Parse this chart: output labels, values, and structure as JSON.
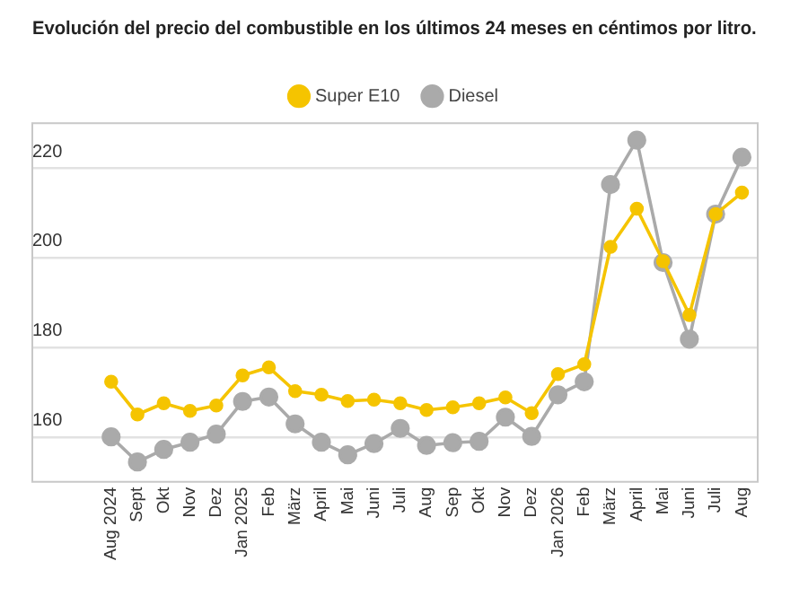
{
  "chart_data": {
    "type": "line",
    "title": "Evolución del precio del combustible en los últimos 24 meses en céntimos por litro.",
    "categories": [
      "Aug 2024",
      "Sept",
      "Okt",
      "Nov",
      "Dez",
      "Jan 2025",
      "Feb",
      "März",
      "April",
      "Mai",
      "Juni",
      "Juli",
      "Aug",
      "Sep",
      "Okt",
      "Nov",
      "Dez",
      "Jan 2026",
      "Feb",
      "März",
      "April",
      "Mai",
      "Juni",
      "Juli",
      "Aug"
    ],
    "series": [
      {
        "name": "Super E10",
        "color": "#f5c400",
        "values": [
          172.3,
          165,
          167.5,
          165.8,
          167,
          173.7,
          175.5,
          170.2,
          169.4,
          168,
          168.3,
          167.5,
          166,
          166.6,
          167.5,
          168.8,
          165.3,
          174,
          176.2,
          202.4,
          210.9,
          199.2,
          187.2,
          209.7,
          214.5
        ]
      },
      {
        "name": "Diesel",
        "color": "#aaaaaa",
        "values": [
          160,
          154.4,
          157.2,
          158.8,
          160.6,
          167.9,
          168.9,
          162.9,
          158.8,
          156,
          158.5,
          161.9,
          158.1,
          158.7,
          159,
          164.4,
          160.1,
          169.4,
          172.3,
          216.3,
          226.2,
          198.9,
          181.8,
          209.7,
          222.4
        ]
      }
    ],
    "ylim": [
      150,
      230
    ],
    "yticks": [
      160,
      180,
      200,
      220
    ],
    "grid": "y",
    "legend": "top",
    "marker": "circle",
    "line_style": "solid"
  }
}
